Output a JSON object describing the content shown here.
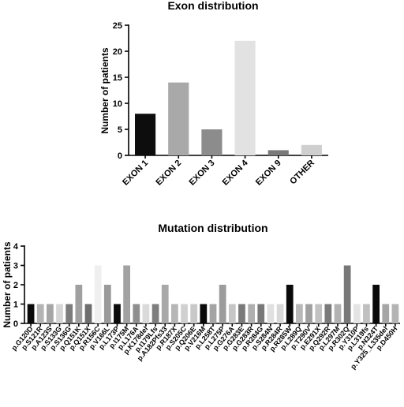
{
  "chart_data": [
    {
      "type": "bar",
      "title": "Exon distribution",
      "xlabel": "",
      "ylabel": "Number of patients",
      "ylim": [
        0,
        25
      ],
      "yticks": [
        0,
        5,
        10,
        15,
        20,
        25
      ],
      "grid": false,
      "categories": [
        "EXON 1",
        "EXON 2",
        "EXON 3",
        "EXON 4",
        "EXON 9",
        "OTHER"
      ],
      "values": [
        8,
        14,
        5,
        22,
        1,
        2
      ],
      "colors": [
        "#0d0d0d",
        "#a9a9a9",
        "#8c8c8c",
        "#e2e2e2",
        "#7a7a7a",
        "#cfcfcf"
      ]
    },
    {
      "type": "bar",
      "title": "Mutation distribution",
      "xlabel": "",
      "ylabel": "Number of patients",
      "ylim": [
        0,
        4
      ],
      "yticks": [
        0,
        1,
        2,
        3,
        4
      ],
      "grid": false,
      "categories": [
        "p.G120D",
        "p.S121R",
        "p.A123S",
        "p.S133G",
        "p.S136G",
        "p.Q151K",
        "p.Q151X",
        "p.R156C",
        "p.V166L",
        "p.L173P",
        "p.I175M",
        "p.L176A",
        "p.K178del",
        "p.I179Lfs",
        "p.A182Pfs33",
        "p.R187X",
        "p.S205C",
        "p.Q206E",
        "p.V216M",
        "p.L258T",
        "p.L275P",
        "p.G276A",
        "p.G283E",
        "p.G283R",
        "p.R284G",
        "p.S284N",
        "p.R284R",
        "p.R285W",
        "p.L289Q",
        "p.T290V",
        "p.E291X",
        "p.Q292R",
        "p.L297M",
        "p.R302Q",
        "p.Y310P",
        "p.L319fs",
        "p.N324T",
        "p.Y325_L335del",
        "p.D450H"
      ],
      "values": [
        1,
        1,
        1,
        1,
        1,
        2,
        1,
        3,
        2,
        1,
        3,
        1,
        1,
        1,
        2,
        1,
        1,
        1,
        1,
        1,
        2,
        1,
        1,
        1,
        1,
        1,
        1,
        2,
        1,
        1,
        1,
        1,
        1,
        3,
        1,
        1,
        2,
        1,
        1
      ],
      "colors": [
        "#0a0a0a",
        "#b4b4b4",
        "#a6a6a6",
        "#d6d6d6",
        "#7c7c7c",
        "#a0a0a0",
        "#6e6e6e",
        "#efefef",
        "#9a9a9a",
        "#0a0a0a",
        "#a2a2a2",
        "#8e8e8e",
        "#dadada",
        "#7e7e7e",
        "#a8a8a8",
        "#b6b6b6",
        "#d0d0d0",
        "#c8c8c8",
        "#0a0a0a",
        "#a4a4a4",
        "#9c9c9c",
        "#c6c6c6",
        "#7a7a7a",
        "#b0b0b0",
        "#787878",
        "#e0e0e0",
        "#d8d8d8",
        "#0a0a0a",
        "#b8b8b8",
        "#a0a0a0",
        "#c2c2c2",
        "#7a7a7a",
        "#b2b2b2",
        "#787878",
        "#e4e4e4",
        "#c0c0c0",
        "#0a0a0a",
        "#a6a6a6",
        "#b4b4b4"
      ]
    }
  ]
}
